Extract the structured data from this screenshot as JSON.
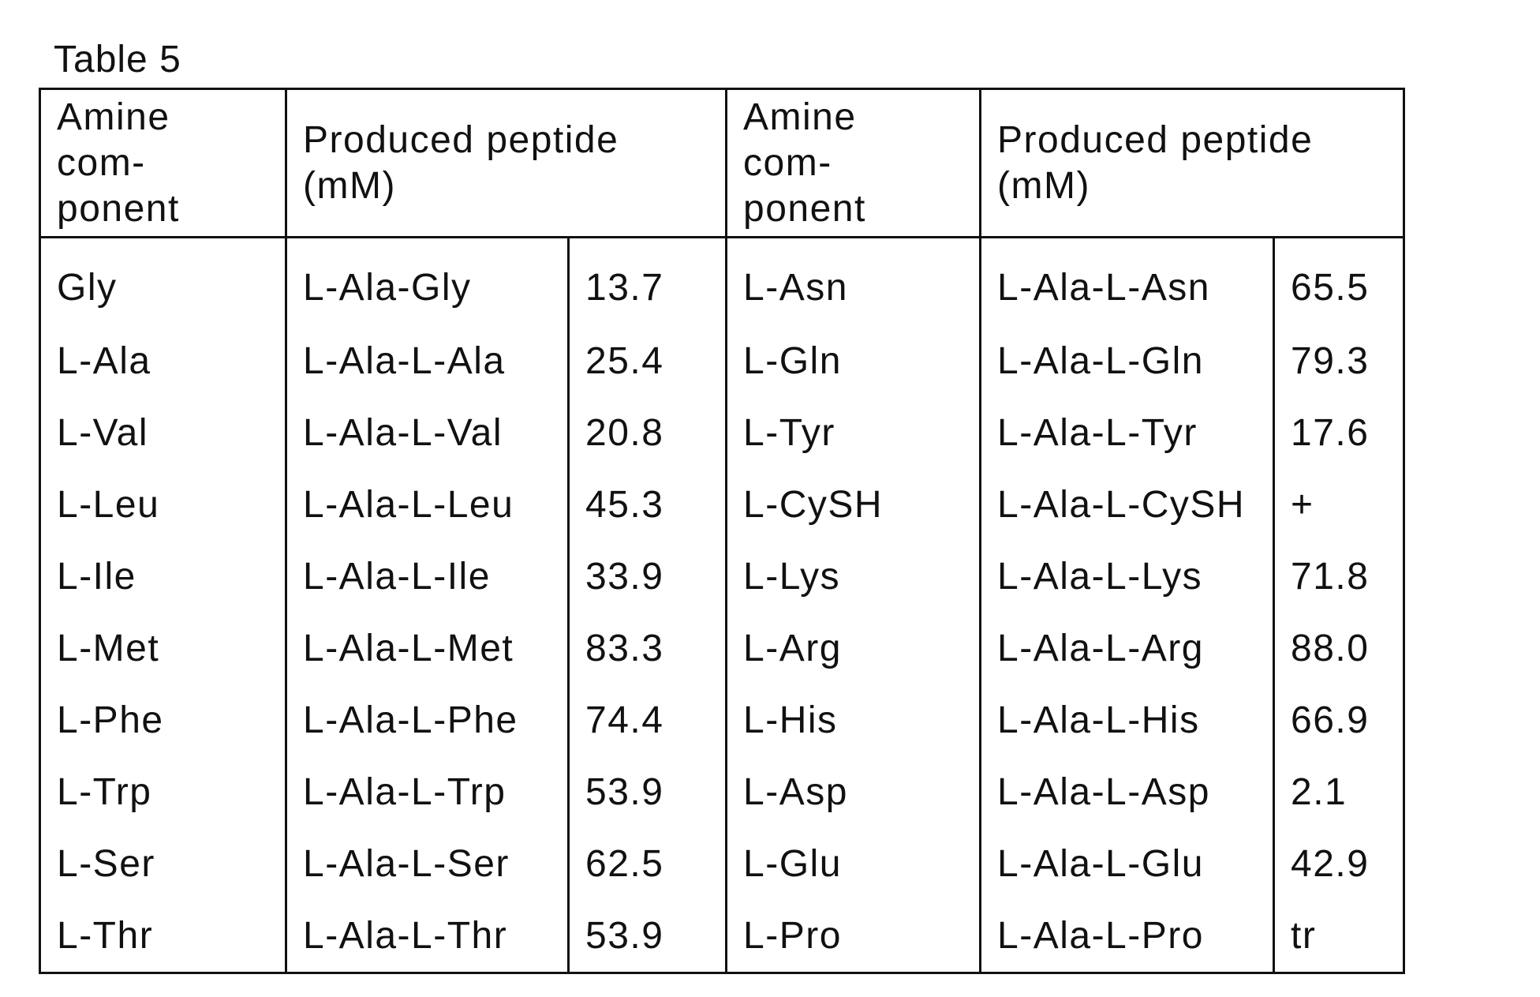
{
  "caption": "Table 5",
  "headers": {
    "amine": [
      "Amine",
      "com-",
      "ponent"
    ],
    "peptide": [
      "Produced peptide",
      "(mM)"
    ]
  },
  "rows": [
    {
      "left": {
        "amine": "Gly",
        "peptide": "L-Ala-Gly",
        "value": "13.7"
      },
      "right": {
        "amine": "L-Asn",
        "peptide": "L-Ala-L-Asn",
        "value": "65.5"
      }
    },
    {
      "left": {
        "amine": "L-Ala",
        "peptide": "L-Ala-L-Ala",
        "value": "25.4"
      },
      "right": {
        "amine": "L-Gln",
        "peptide": "L-Ala-L-Gln",
        "value": "79.3"
      }
    },
    {
      "left": {
        "amine": "L-Val",
        "peptide": "L-Ala-L-Val",
        "value": "20.8"
      },
      "right": {
        "amine": "L-Tyr",
        "peptide": "L-Ala-L-Tyr",
        "value": "17.6"
      }
    },
    {
      "left": {
        "amine": "L-Leu",
        "peptide": "L-Ala-L-Leu",
        "value": "45.3"
      },
      "right": {
        "amine": "L-CySH",
        "peptide": "L-Ala-L-CySH",
        "value": "+"
      }
    },
    {
      "left": {
        "amine": "L-Ile",
        "peptide": "L-Ala-L-Ile",
        "value": "33.9"
      },
      "right": {
        "amine": "L-Lys",
        "peptide": "L-Ala-L-Lys",
        "value": "71.8"
      }
    },
    {
      "left": {
        "amine": "L-Met",
        "peptide": "L-Ala-L-Met",
        "value": "83.3"
      },
      "right": {
        "amine": "L-Arg",
        "peptide": "L-Ala-L-Arg",
        "value": "88.0"
      }
    },
    {
      "left": {
        "amine": "L-Phe",
        "peptide": "L-Ala-L-Phe",
        "value": "74.4"
      },
      "right": {
        "amine": "L-His",
        "peptide": "L-Ala-L-His",
        "value": "66.9"
      }
    },
    {
      "left": {
        "amine": "L-Trp",
        "peptide": "L-Ala-L-Trp",
        "value": "53.9"
      },
      "right": {
        "amine": "L-Asp",
        "peptide": "L-Ala-L-Asp",
        "value": "2.1"
      }
    },
    {
      "left": {
        "amine": "L-Ser",
        "peptide": "L-Ala-L-Ser",
        "value": "62.5"
      },
      "right": {
        "amine": "L-Glu",
        "peptide": "L-Ala-L-Glu",
        "value": "42.9"
      }
    },
    {
      "left": {
        "amine": "L-Thr",
        "peptide": "L-Ala-L-Thr",
        "value": "53.9"
      },
      "right": {
        "amine": "L-Pro",
        "peptide": "L-Ala-L-Pro",
        "value": "tr"
      }
    }
  ]
}
